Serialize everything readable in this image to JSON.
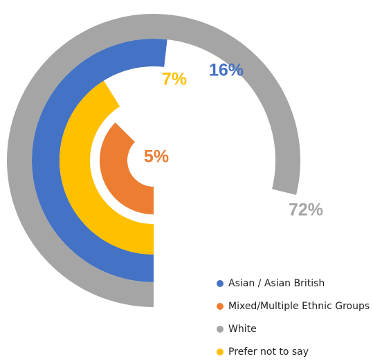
{
  "chart_data": {
    "type": "radial_bar",
    "categories": [
      "Asian / Asian British",
      "Mixed/Multiple Ethnic Groups",
      "White",
      "Prefer not to say"
    ],
    "values": [
      16,
      5,
      72,
      7
    ],
    "value_labels": [
      "16%",
      "5%",
      "72%",
      "7%"
    ],
    "colors": [
      "#4472c4",
      "#ed7d31",
      "#a5a5a5",
      "#ffc000"
    ]
  }
}
